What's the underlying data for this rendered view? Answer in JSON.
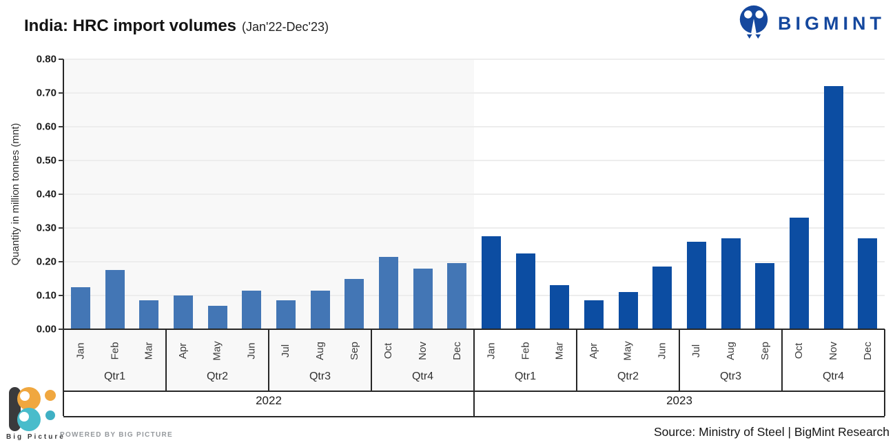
{
  "header": {
    "title": "India: HRC import volumes",
    "subtitle": "(Jan'22-Dec'23)",
    "brand": "BIGMINT"
  },
  "chart_data": {
    "type": "bar",
    "title": "India: HRC import volumes (Jan'22-Dec'23)",
    "ylabel": "Quantity in million tonnes (mnt)",
    "xlabel": "",
    "ylim": [
      0,
      0.8
    ],
    "ytick_step": 0.1,
    "grid": true,
    "legend_position": "none",
    "months": [
      "Jan",
      "Feb",
      "Mar",
      "Apr",
      "May",
      "Jun",
      "Jul",
      "Aug",
      "Sep",
      "Oct",
      "Nov",
      "Dec"
    ],
    "quarters": [
      "Qtr1",
      "Qtr2",
      "Qtr3",
      "Qtr4"
    ],
    "series": [
      {
        "name": "2022",
        "color": "#4376B5",
        "background": "#f8f8f8",
        "values": [
          0.125,
          0.175,
          0.085,
          0.1,
          0.07,
          0.115,
          0.085,
          0.115,
          0.15,
          0.215,
          0.18,
          0.195
        ]
      },
      {
        "name": "2023",
        "color": "#0C4DA2",
        "background": "#ffffff",
        "values": [
          0.275,
          0.225,
          0.13,
          0.085,
          0.11,
          0.185,
          0.26,
          0.27,
          0.195,
          0.33,
          0.72,
          0.27
        ]
      }
    ]
  },
  "footer": {
    "logo_text": "Big Picture",
    "powered_by": "POWERED BY BIG PICTURE",
    "source": "Source: Ministry of Steel | BigMint Research"
  },
  "colors": {
    "bar_2022": "#4376B5",
    "bar_2023": "#0C4DA2",
    "axis": "#262626",
    "gridline": "#ededed",
    "panel_2022_bg": "#f8f8f8",
    "brand_blue": "#15489E",
    "bp_dark": "#3A3A3C",
    "bp_orange": "#F0A73F",
    "bp_teal": "#49BCCB"
  }
}
